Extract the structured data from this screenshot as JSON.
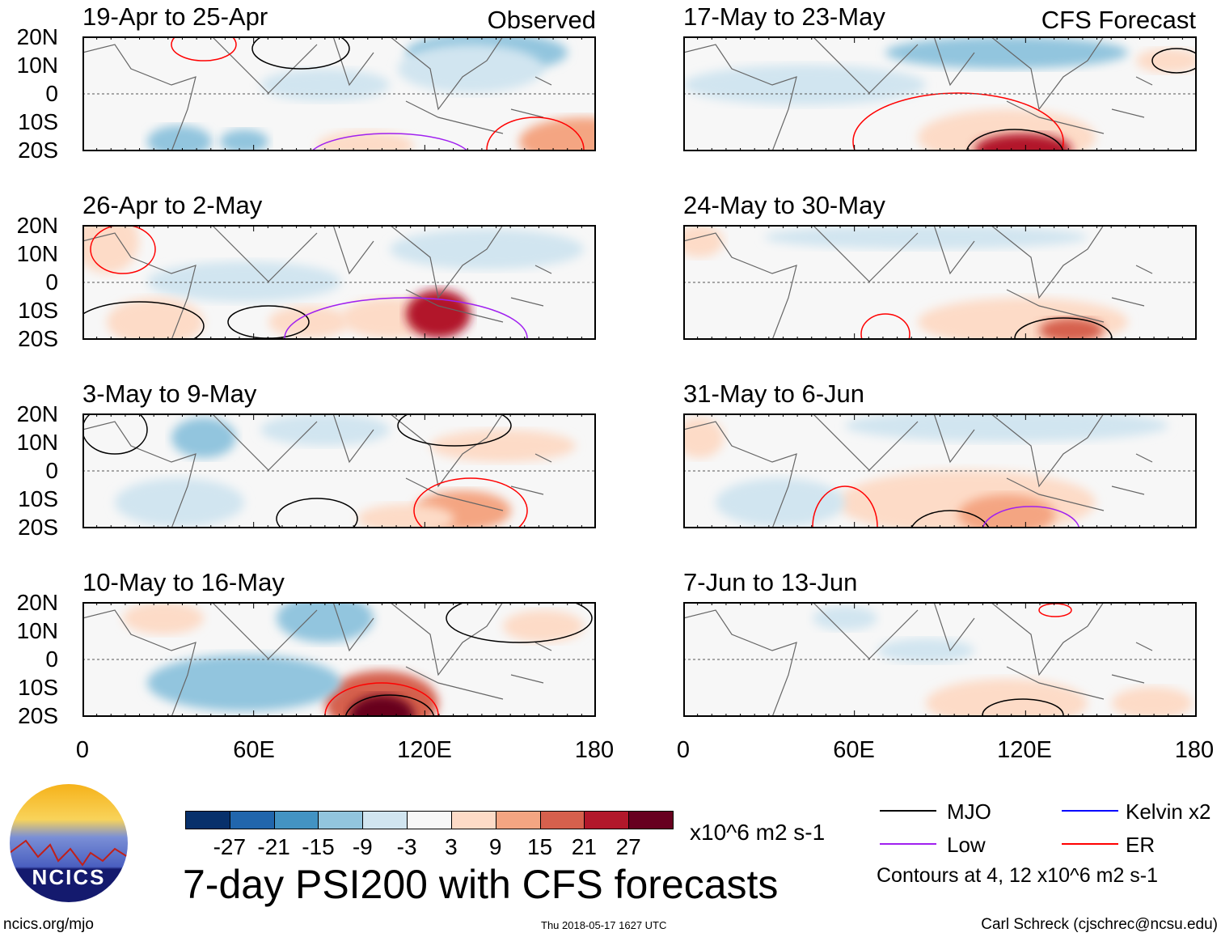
{
  "column_tags": {
    "left": "Observed",
    "right": "CFS Forecast"
  },
  "panels_left": [
    {
      "title": "19-Apr to 25-Apr"
    },
    {
      "title": "26-Apr to 2-May"
    },
    {
      "title": "3-May to 9-May"
    },
    {
      "title": "10-May to 16-May"
    }
  ],
  "panels_right": [
    {
      "title": "17-May to 23-May"
    },
    {
      "title": "24-May to 30-May"
    },
    {
      "title": "31-May to 6-Jun"
    },
    {
      "title": "7-Jun to 13-Jun"
    }
  ],
  "lat_labels": [
    "20N",
    "10N",
    "0",
    "10S",
    "20S"
  ],
  "lon_labels": [
    "0",
    "60E",
    "120E",
    "180"
  ],
  "colorbar": {
    "colors": [
      "#08306b",
      "#2166ac",
      "#4393c3",
      "#92c5de",
      "#d1e5f0",
      "#f7f7f7",
      "#fddbc7",
      "#f4a582",
      "#d6604d",
      "#b2182b",
      "#67001f"
    ],
    "labels": [
      "-27",
      "-21",
      "-15",
      "-9",
      "-3",
      "3",
      "9",
      "15",
      "21",
      "27"
    ],
    "units": "x10^6 m2 s-1"
  },
  "title": "7-day PSI200 with CFS forecasts",
  "legend": {
    "items": [
      {
        "label": "MJO",
        "color": "#000000"
      },
      {
        "label": "Kelvin x2",
        "color": "#0000ff"
      },
      {
        "label": "Low",
        "color": "#a020f0"
      },
      {
        "label": "ER",
        "color": "#ff0000"
      }
    ],
    "note": "Contours at 4, 12 x10^6 m2 s-1"
  },
  "logo": {
    "text": "NCICS"
  },
  "footer": {
    "url": "ncics.org/mjo",
    "timestamp": "Thu 2018-05-17 1627 UTC",
    "credit": "Carl Schreck (cjschrec@ncsu.edu)"
  }
}
